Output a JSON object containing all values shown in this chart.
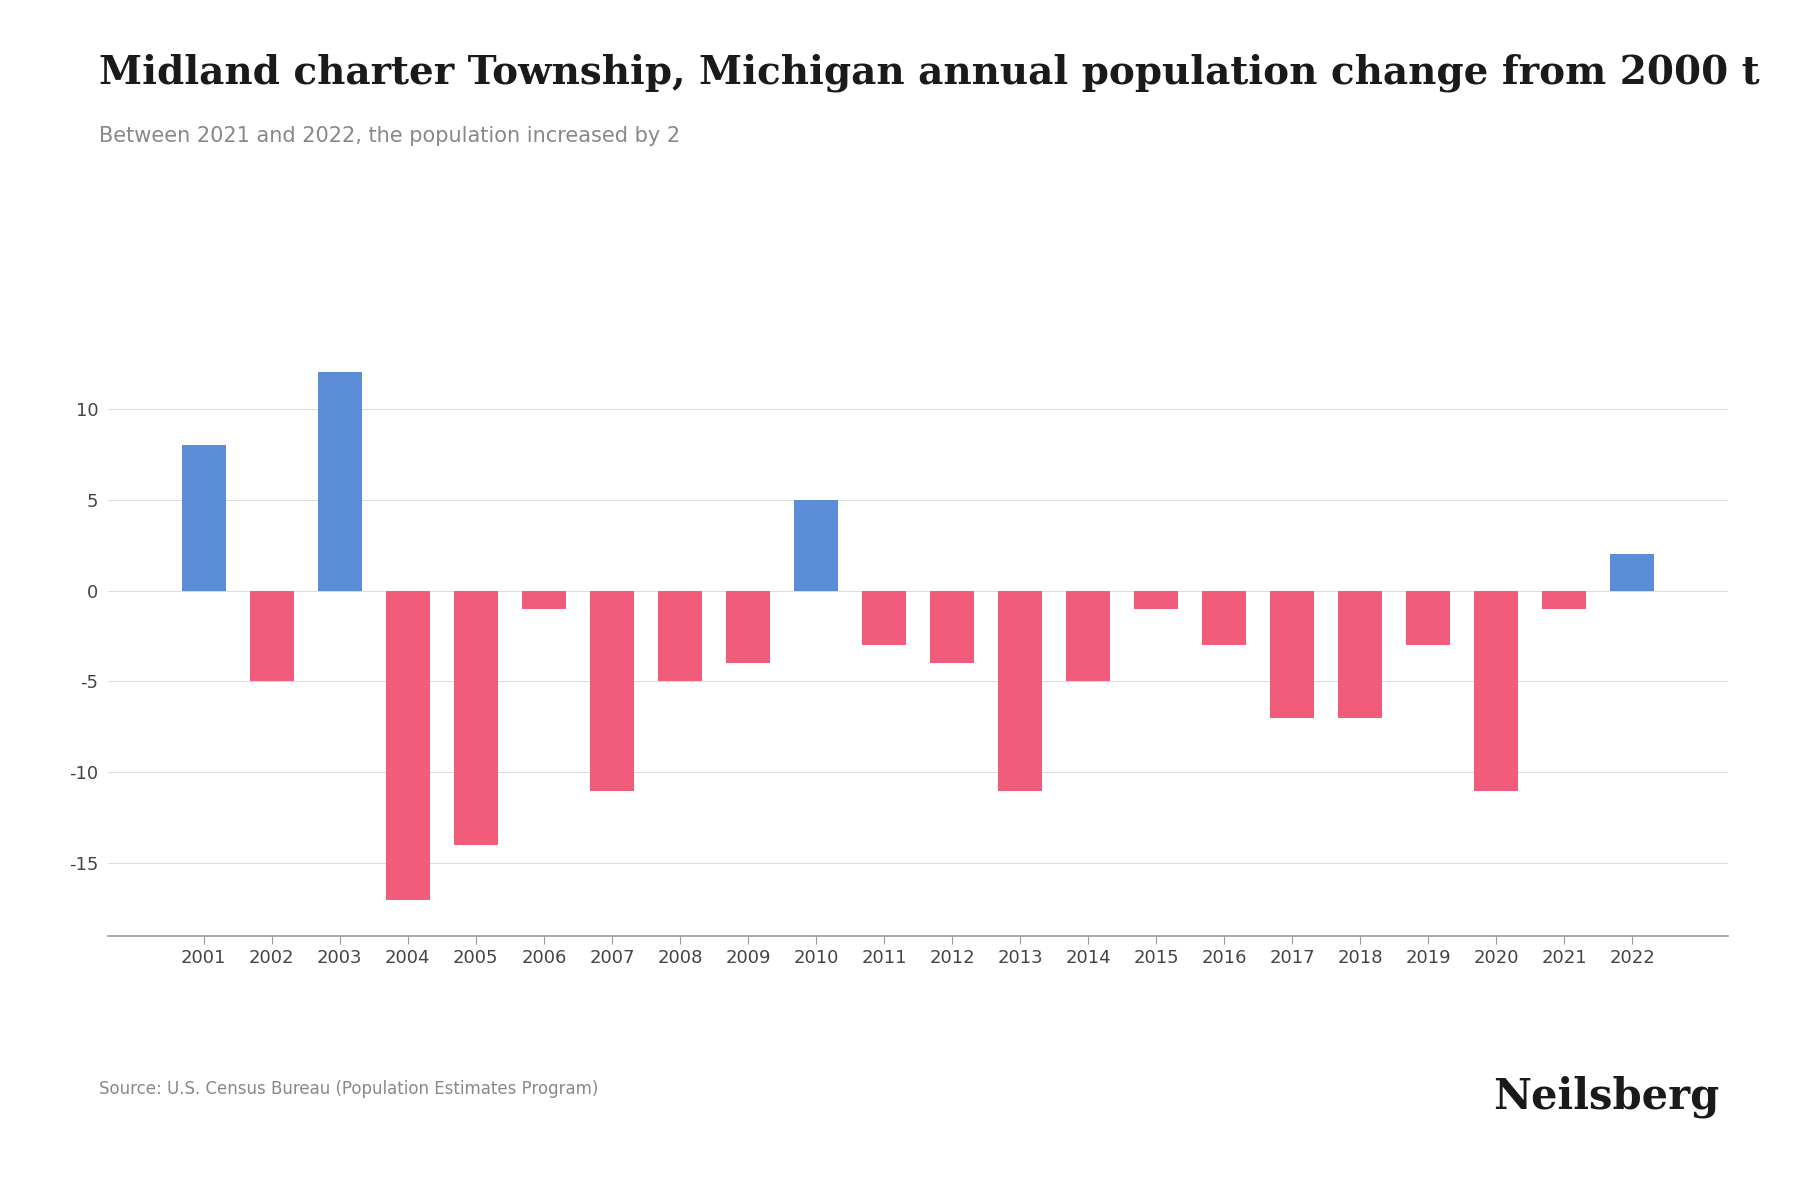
{
  "years": [
    2001,
    2002,
    2003,
    2004,
    2005,
    2006,
    2007,
    2008,
    2009,
    2010,
    2011,
    2012,
    2013,
    2014,
    2015,
    2016,
    2017,
    2018,
    2019,
    2020,
    2021,
    2022
  ],
  "values": [
    8,
    -5,
    12,
    -17,
    -14,
    -1,
    -11,
    -5,
    -4,
    5,
    -3,
    -4,
    -11,
    -5,
    -1,
    -3,
    -7,
    -7,
    -3,
    -11,
    -1,
    2
  ],
  "positive_color": "#5B8ED6",
  "negative_color": "#F25C7B",
  "title": "Midland charter Township, Michigan annual population change from 2000 t",
  "subtitle": "Between 2021 and 2022, the population increased by 2",
  "source": "Source: U.S. Census Bureau (Population Estimates Program)",
  "ylim": [
    -19,
    14
  ],
  "yticks": [
    -15,
    -10,
    -5,
    0,
    5,
    10
  ],
  "background_color": "#FFFFFF",
  "title_fontsize": 28,
  "subtitle_fontsize": 15,
  "source_fontsize": 12,
  "tick_fontsize": 13,
  "brand": "Neilsberg",
  "brand_fontsize": 30
}
